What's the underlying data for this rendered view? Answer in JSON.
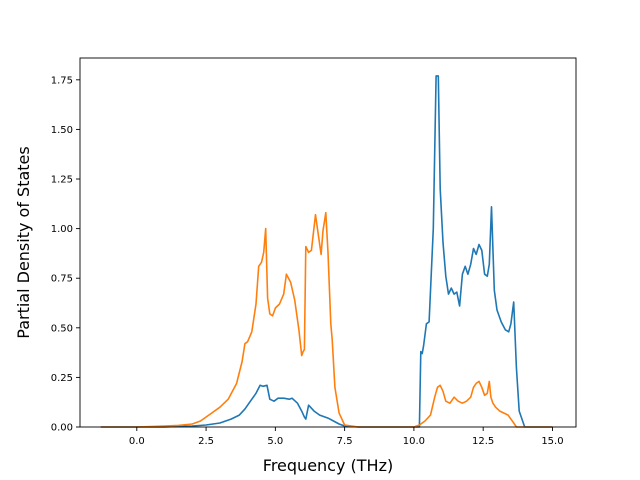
{
  "chart_data": {
    "type": "line",
    "xlabel": "Frequency (THz)",
    "ylabel": "Partial Density of States",
    "xlim": [
      -2.05,
      15.85
    ],
    "ylim": [
      0,
      1.86
    ],
    "xticks": [
      0.0,
      2.5,
      5.0,
      7.5,
      10.0,
      12.5,
      15.0
    ],
    "xtick_labels": [
      "0.0",
      "2.5",
      "5.0",
      "7.5",
      "10.0",
      "12.5",
      "15.0"
    ],
    "yticks": [
      0.0,
      0.25,
      0.5,
      0.75,
      1.0,
      1.25,
      1.5,
      1.75
    ],
    "ytick_labels": [
      "0.00",
      "0.25",
      "0.50",
      "0.75",
      "1.00",
      "1.25",
      "1.50",
      "1.75"
    ],
    "grid": false,
    "legend": "none",
    "series": [
      {
        "color": "#1f77b4",
        "x": [
          -1.3,
          0.0,
          1.0,
          2.0,
          2.5,
          3.0,
          3.4,
          3.7,
          3.9,
          4.1,
          4.3,
          4.45,
          4.55,
          4.7,
          4.8,
          4.95,
          5.1,
          5.3,
          5.5,
          5.6,
          5.8,
          5.95,
          6.05,
          6.1,
          6.2,
          6.4,
          6.6,
          6.9,
          7.1,
          7.3,
          7.5,
          8.0,
          9.0,
          10.0,
          10.2,
          10.25,
          10.3,
          10.35,
          10.45,
          10.55,
          10.7,
          10.8,
          10.88,
          10.95,
          11.05,
          11.15,
          11.25,
          11.35,
          11.45,
          11.55,
          11.65,
          11.75,
          11.85,
          11.95,
          12.05,
          12.15,
          12.25,
          12.35,
          12.45,
          12.55,
          12.65,
          12.72,
          12.8,
          12.9,
          13.0,
          13.15,
          13.3,
          13.42,
          13.5,
          13.6,
          13.7,
          13.8,
          14.0,
          15.0
        ],
        "y": [
          0,
          0,
          0,
          0.005,
          0.01,
          0.02,
          0.04,
          0.06,
          0.09,
          0.13,
          0.17,
          0.21,
          0.205,
          0.21,
          0.14,
          0.13,
          0.145,
          0.145,
          0.14,
          0.145,
          0.12,
          0.08,
          0.05,
          0.04,
          0.11,
          0.08,
          0.06,
          0.045,
          0.03,
          0.015,
          0.005,
          0,
          0,
          0,
          0,
          0.38,
          0.37,
          0.41,
          0.52,
          0.53,
          1.0,
          1.77,
          1.77,
          1.2,
          0.93,
          0.76,
          0.67,
          0.7,
          0.67,
          0.68,
          0.61,
          0.77,
          0.81,
          0.77,
          0.82,
          0.9,
          0.87,
          0.92,
          0.89,
          0.77,
          0.76,
          0.82,
          1.11,
          0.69,
          0.59,
          0.53,
          0.49,
          0.48,
          0.52,
          0.63,
          0.3,
          0.08,
          0,
          0
        ]
      },
      {
        "color": "#ff7f0e",
        "x": [
          -1.3,
          0.0,
          1.0,
          1.5,
          2.0,
          2.3,
          2.7,
          3.0,
          3.3,
          3.6,
          3.8,
          3.9,
          4.0,
          4.15,
          4.3,
          4.4,
          4.5,
          4.58,
          4.65,
          4.72,
          4.8,
          4.9,
          5.0,
          5.15,
          5.3,
          5.4,
          5.55,
          5.7,
          5.85,
          5.95,
          6.0,
          6.05,
          6.1,
          6.2,
          6.3,
          6.45,
          6.55,
          6.65,
          6.72,
          6.82,
          6.9,
          7.0,
          7.05,
          7.15,
          7.3,
          7.5,
          8.0,
          9.0,
          10.0,
          10.2,
          10.4,
          10.6,
          10.75,
          10.85,
          10.95,
          11.05,
          11.15,
          11.3,
          11.45,
          11.6,
          11.75,
          11.9,
          12.05,
          12.15,
          12.25,
          12.35,
          12.45,
          12.55,
          12.65,
          12.72,
          12.78,
          12.85,
          12.95,
          13.1,
          13.25,
          13.4,
          13.5,
          13.6,
          13.7,
          14.0,
          15.0
        ],
        "y": [
          0,
          0,
          0.005,
          0.008,
          0.015,
          0.03,
          0.07,
          0.1,
          0.14,
          0.22,
          0.33,
          0.42,
          0.43,
          0.48,
          0.62,
          0.81,
          0.83,
          0.88,
          1.0,
          0.65,
          0.57,
          0.56,
          0.6,
          0.62,
          0.67,
          0.77,
          0.73,
          0.64,
          0.49,
          0.36,
          0.38,
          0.39,
          0.91,
          0.88,
          0.89,
          1.07,
          0.97,
          0.87,
          0.99,
          1.08,
          0.88,
          0.52,
          0.44,
          0.2,
          0.07,
          0.01,
          0,
          0,
          0,
          0.01,
          0.03,
          0.06,
          0.15,
          0.2,
          0.21,
          0.18,
          0.13,
          0.12,
          0.15,
          0.13,
          0.12,
          0.13,
          0.15,
          0.2,
          0.22,
          0.23,
          0.2,
          0.16,
          0.17,
          0.23,
          0.15,
          0.12,
          0.1,
          0.08,
          0.07,
          0.06,
          0.04,
          0.02,
          0,
          0,
          0
        ]
      }
    ]
  }
}
